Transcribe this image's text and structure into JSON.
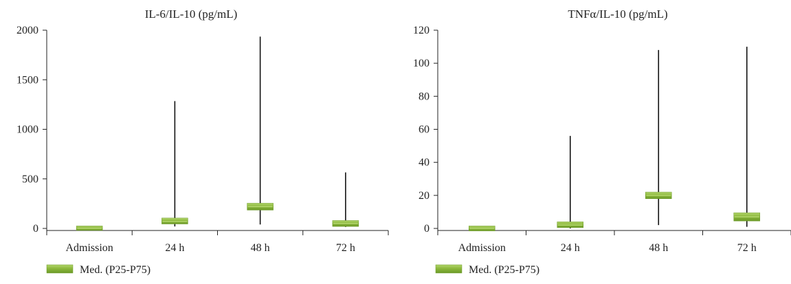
{
  "colors": {
    "box_fill": "#8cb83c",
    "box_highlight": "#b3d66d",
    "box_dark": "#6c9a28",
    "axis": "#222222"
  },
  "chart_data": [
    {
      "type": "box",
      "title": "IL-6/IL-10 (pg/mL)",
      "categories": [
        "Admission",
        "24 h",
        "48 h",
        "72 h"
      ],
      "ylim": [
        0,
        2000
      ],
      "yticks": [
        0,
        500,
        1000,
        1500,
        2000
      ],
      "legend": "Med. (P25-P75)",
      "legend_position": "bottom-left",
      "grid": false,
      "series": [
        {
          "name": "Med. (P25-P75)",
          "median": [
            0,
            70,
            220,
            50
          ],
          "p25": [
            -20,
            45,
            185,
            20
          ],
          "p75": [
            25,
            105,
            255,
            80
          ],
          "whisker_high": [
            null,
            1285,
            1935,
            565
          ],
          "whisker_low": [
            null,
            20,
            40,
            15
          ]
        }
      ]
    },
    {
      "type": "box",
      "title": "TNFα/IL-10 (pg/mL)",
      "categories": [
        "Admission",
        "24 h",
        "48 h",
        "72 h"
      ],
      "ylim": [
        0,
        120
      ],
      "yticks": [
        0,
        20,
        40,
        60,
        80,
        100,
        120
      ],
      "legend": "Med. (P25-P75)",
      "legend_position": "bottom-left",
      "grid": false,
      "series": [
        {
          "name": "Med. (P25-P75)",
          "median": [
            0,
            2,
            20,
            7
          ],
          "p25": [
            -1.5,
            0.5,
            18,
            4.5
          ],
          "p75": [
            1.5,
            4,
            22,
            9.5
          ],
          "whisker_high": [
            null,
            56,
            108,
            110
          ],
          "whisker_low": [
            null,
            0,
            2,
            1
          ]
        }
      ]
    }
  ]
}
